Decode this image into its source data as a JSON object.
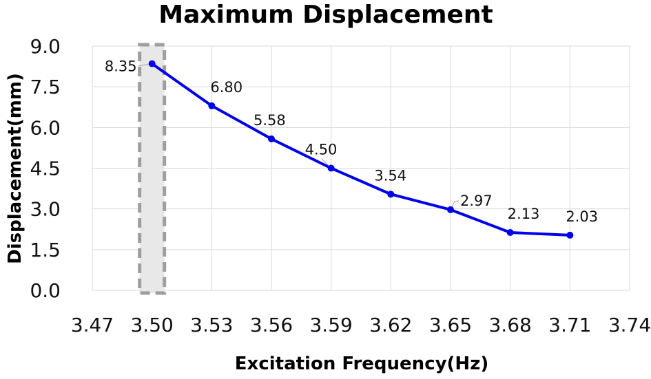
{
  "chart_data": {
    "type": "line",
    "title": "Maximum Displacement",
    "xlabel": "Excitation Frequency(Hz)",
    "ylabel": "Displacement(mm)",
    "xlim": [
      3.47,
      3.74
    ],
    "ylim": [
      0.0,
      9.0
    ],
    "x_ticks": [
      "3.47",
      "3.50",
      "3.53",
      "3.56",
      "3.59",
      "3.62",
      "3.65",
      "3.68",
      "3.71",
      "3.74"
    ],
    "y_ticks": [
      "0.0",
      "1.5",
      "3.0",
      "4.5",
      "6.0",
      "7.5",
      "9.0"
    ],
    "grid": true,
    "series": [
      {
        "color": "#0000ee",
        "x": [
          3.5,
          3.53,
          3.56,
          3.59,
          3.62,
          3.65,
          3.68,
          3.71
        ],
        "y": [
          8.35,
          6.8,
          5.58,
          4.5,
          3.54,
          2.97,
          2.13,
          2.03
        ],
        "labels": [
          "8.35",
          "6.80",
          "5.58",
          "4.50",
          "3.54",
          "2.97",
          "2.13",
          "2.03"
        ]
      }
    ],
    "highlight": {
      "x_center": 3.5,
      "color": "#9e9e9e",
      "fill": "#e8e8e8"
    }
  }
}
